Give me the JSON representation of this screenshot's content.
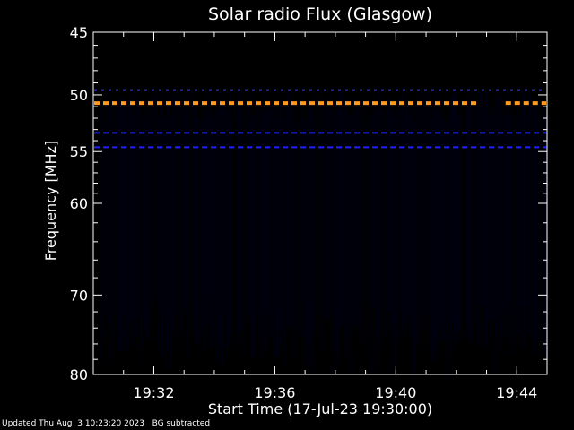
{
  "chart_data": {
    "type": "heatmap",
    "title": "Solar radio Flux (Glasgow)",
    "xlabel": "Start Time (17-Jul-23 19:30:00)",
    "ylabel": "Frequency [MHz]",
    "x_start": "19:30:00",
    "x_end": "19:45:00",
    "x_range_minutes": [
      0,
      15
    ],
    "x_ticks": [
      {
        "minute": 2,
        "label": "19:32"
      },
      {
        "minute": 6,
        "label": "19:36"
      },
      {
        "minute": 10,
        "label": "19:40"
      },
      {
        "minute": 14,
        "label": "19:44"
      }
    ],
    "y_scale": "log",
    "ylim": [
      45,
      80
    ],
    "y_ticks": [
      45,
      50,
      55,
      60,
      70,
      80
    ],
    "y_tick_labels": [
      "45",
      "50",
      "55",
      "60",
      "70",
      "80"
    ],
    "background_color": "#000000",
    "data_color": "#00001a",
    "interference_lines": [
      {
        "frequency_mhz": 49.6,
        "color": "#3030ff",
        "dash": "dotted"
      },
      {
        "frequency_mhz": 50.7,
        "color": "#ff9a20",
        "dash": "dashed",
        "gap_minutes": [
          12.8,
          13.6
        ]
      },
      {
        "frequency_mhz": 53.3,
        "color": "#2020ff",
        "dash": "dashed"
      },
      {
        "frequency_mhz": 54.6,
        "color": "#2020ff",
        "dash": "dashed"
      }
    ]
  },
  "footer": {
    "updated": "Updated Thu Aug  3 10:23:20 2023",
    "note": "BG subtracted"
  }
}
